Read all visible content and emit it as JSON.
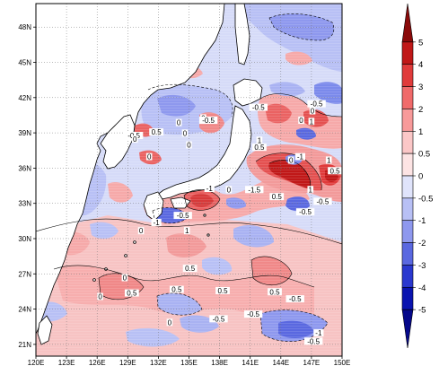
{
  "map": {
    "lat_labels": [
      "48N",
      "45N",
      "42N",
      "39N",
      "36N",
      "33N",
      "30N",
      "27N",
      "24N",
      "21N"
    ],
    "lon_labels": [
      "120E",
      "123E",
      "126E",
      "129E",
      "132E",
      "135E",
      "138E",
      "141E",
      "144E",
      "147E",
      "150E"
    ],
    "lat_range": [
      20,
      50
    ],
    "lon_range": [
      120,
      150
    ],
    "land_color": "#ffffff",
    "coastline_color": "#000000"
  },
  "contour_labels": [
    {
      "text": "0",
      "lon": 136.4,
      "lat": 40.2
    },
    {
      "text": "-0.5",
      "lon": 136.9,
      "lat": 40.0
    },
    {
      "text": "0",
      "lon": 134.0,
      "lat": 39.8
    },
    {
      "text": "0.5",
      "lon": 131.8,
      "lat": 39.0
    },
    {
      "text": "-0.5",
      "lon": 129.6,
      "lat": 38.7
    },
    {
      "text": "0",
      "lon": 129.7,
      "lat": 38.4
    },
    {
      "text": "0",
      "lon": 134.6,
      "lat": 38.9
    },
    {
      "text": "0",
      "lon": 135.0,
      "lat": 37.9
    },
    {
      "text": "0",
      "lon": 131.1,
      "lat": 36.9
    },
    {
      "text": "-0.5",
      "lon": 141.8,
      "lat": 41.1
    },
    {
      "text": "-0.5",
      "lon": 147.5,
      "lat": 41.4
    },
    {
      "text": "0",
      "lon": 147.1,
      "lat": 40.8
    },
    {
      "text": "0",
      "lon": 146.0,
      "lat": 40.0
    },
    {
      "text": "1",
      "lon": 147.0,
      "lat": 39.9
    },
    {
      "text": "1",
      "lon": 141.9,
      "lat": 38.3
    },
    {
      "text": "0.5",
      "lon": 141.9,
      "lat": 37.7
    },
    {
      "text": "-1",
      "lon": 145.9,
      "lat": 36.9
    },
    {
      "text": "0",
      "lon": 145.0,
      "lat": 36.6
    },
    {
      "text": "1",
      "lon": 148.7,
      "lat": 36.6
    },
    {
      "text": "0.5",
      "lon": 149.3,
      "lat": 35.7
    },
    {
      "text": "0.5",
      "lon": 143.6,
      "lat": 33.5
    },
    {
      "text": "1",
      "lon": 146.9,
      "lat": 34.1
    },
    {
      "text": "-1",
      "lon": 137.0,
      "lat": 34.2
    },
    {
      "text": "-1.5",
      "lon": 141.4,
      "lat": 34.1
    },
    {
      "text": "0",
      "lon": 138.9,
      "lat": 34.1
    },
    {
      "text": "-0.5",
      "lon": 148.1,
      "lat": 33.1
    },
    {
      "text": "-0.5",
      "lon": 134.4,
      "lat": 31.9
    },
    {
      "text": "-1",
      "lon": 131.8,
      "lat": 31.3
    },
    {
      "text": "0",
      "lon": 130.3,
      "lat": 30.6
    },
    {
      "text": "1",
      "lon": 134.8,
      "lat": 30.6
    },
    {
      "text": "-0.5",
      "lon": 146.4,
      "lat": 32.2
    },
    {
      "text": "0.5",
      "lon": 135.1,
      "lat": 27.4
    },
    {
      "text": "0",
      "lon": 128.7,
      "lat": 26.6
    },
    {
      "text": "0.5",
      "lon": 129.4,
      "lat": 25.3
    },
    {
      "text": "0.5",
      "lon": 133.8,
      "lat": 25.6
    },
    {
      "text": "0",
      "lon": 126.3,
      "lat": 25.0
    },
    {
      "text": "0.5",
      "lon": 138.3,
      "lat": 25.5
    },
    {
      "text": "0.5",
      "lon": 143.4,
      "lat": 25.4
    },
    {
      "text": "-0.5",
      "lon": 145.4,
      "lat": 24.8
    },
    {
      "text": "0",
      "lon": 133.1,
      "lat": 22.8
    },
    {
      "text": "-0.5",
      "lon": 137.9,
      "lat": 23.1
    },
    {
      "text": "-0.5",
      "lon": 141.3,
      "lat": 23.5
    },
    {
      "text": "-1",
      "lon": 147.7,
      "lat": 21.9
    },
    {
      "text": "-0.5",
      "lon": 147.2,
      "lat": 21.2
    }
  ],
  "colorbar": {
    "labels": [
      "5",
      "4",
      "3",
      "2",
      "1",
      "0.5",
      "0",
      "-0.5",
      "-1",
      "-2",
      "-3",
      "-4",
      "-5"
    ],
    "colors": [
      "#8a0a0a",
      "#c01818",
      "#e03b3b",
      "#f06a6a",
      "#f89a9a",
      "#fbc7c7",
      "#fde4e4",
      "#e0e4fb",
      "#b8c0f5",
      "#8e98ee",
      "#5a68e0",
      "#2a38cf",
      "#0a14b0",
      "#05088a"
    ]
  }
}
